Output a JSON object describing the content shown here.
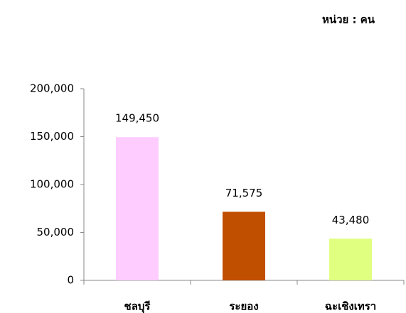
{
  "chart_data": {
    "type": "bar",
    "annotation": "หน่วย : คน",
    "categories": [
      "ชลบุรี",
      "ระยอง",
      "ฉะเชิงเทรา"
    ],
    "values": [
      149450,
      71575,
      43480
    ],
    "value_labels": [
      "149,450",
      "71,575",
      "43,480"
    ],
    "colors": [
      "#ffccff",
      "#c04f00",
      "#e0ff80"
    ],
    "ylim": [
      0,
      200000
    ],
    "yticks": [
      {
        "value": 0,
        "label": "0"
      },
      {
        "value": 50000,
        "label": "50,000"
      },
      {
        "value": 100000,
        "label": "100,000"
      },
      {
        "value": 150000,
        "label": "150,000"
      },
      {
        "value": 200000,
        "label": "200,000"
      }
    ],
    "grid": false
  }
}
